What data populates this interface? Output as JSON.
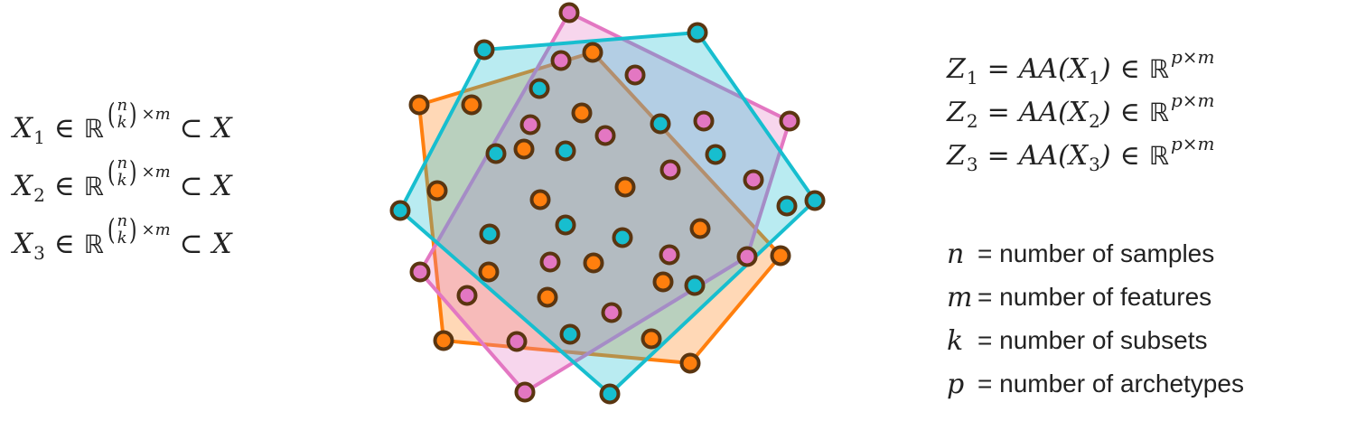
{
  "left_equations": [
    {
      "var": "X",
      "sub": "1",
      "in": "∈",
      "field": "ℝ",
      "binom_top": "n",
      "binom_bottom": "k",
      "times_m": "×m",
      "subset": "⊂",
      "superset": "X"
    },
    {
      "var": "X",
      "sub": "2",
      "in": "∈",
      "field": "ℝ",
      "binom_top": "n",
      "binom_bottom": "k",
      "times_m": "×m",
      "subset": "⊂",
      "superset": "X"
    },
    {
      "var": "X",
      "sub": "3",
      "in": "∈",
      "field": "ℝ",
      "binom_top": "n",
      "binom_bottom": "k",
      "times_m": "×m",
      "subset": "⊂",
      "superset": "X"
    }
  ],
  "right_equations": [
    {
      "lhs": "Z",
      "sub": "1",
      "eq": "=",
      "fn": "AA(",
      "arg": "X",
      "arg_sub": "1",
      "close": ")",
      "in": "∈",
      "field": "ℝ",
      "dims": "p×m"
    },
    {
      "lhs": "Z",
      "sub": "2",
      "eq": "=",
      "fn": "AA(",
      "arg": "X",
      "arg_sub": "2",
      "close": ")",
      "in": "∈",
      "field": "ℝ",
      "dims": "p×m"
    },
    {
      "lhs": "Z",
      "sub": "3",
      "eq": "=",
      "fn": "AA(",
      "arg": "X",
      "arg_sub": "3",
      "close": ")",
      "in": "∈",
      "field": "ℝ",
      "dims": "p×m"
    }
  ],
  "definitions": [
    {
      "var": "n",
      "text": "= number of samples"
    },
    {
      "var": "m",
      "text": "= number of features"
    },
    {
      "var": "k",
      "text": "= number of subsets"
    },
    {
      "var": "p",
      "text": "= number of archetypes"
    }
  ],
  "colors": {
    "orange": "#ff7f0e",
    "pink": "#e377c2",
    "cyan": "#17becf",
    "outline": "#5a3510",
    "orange_fill": "rgba(255,127,14,0.30)",
    "pink_fill": "rgba(227,119,194,0.30)",
    "cyan_fill": "rgba(23,190,207,0.30)"
  }
}
